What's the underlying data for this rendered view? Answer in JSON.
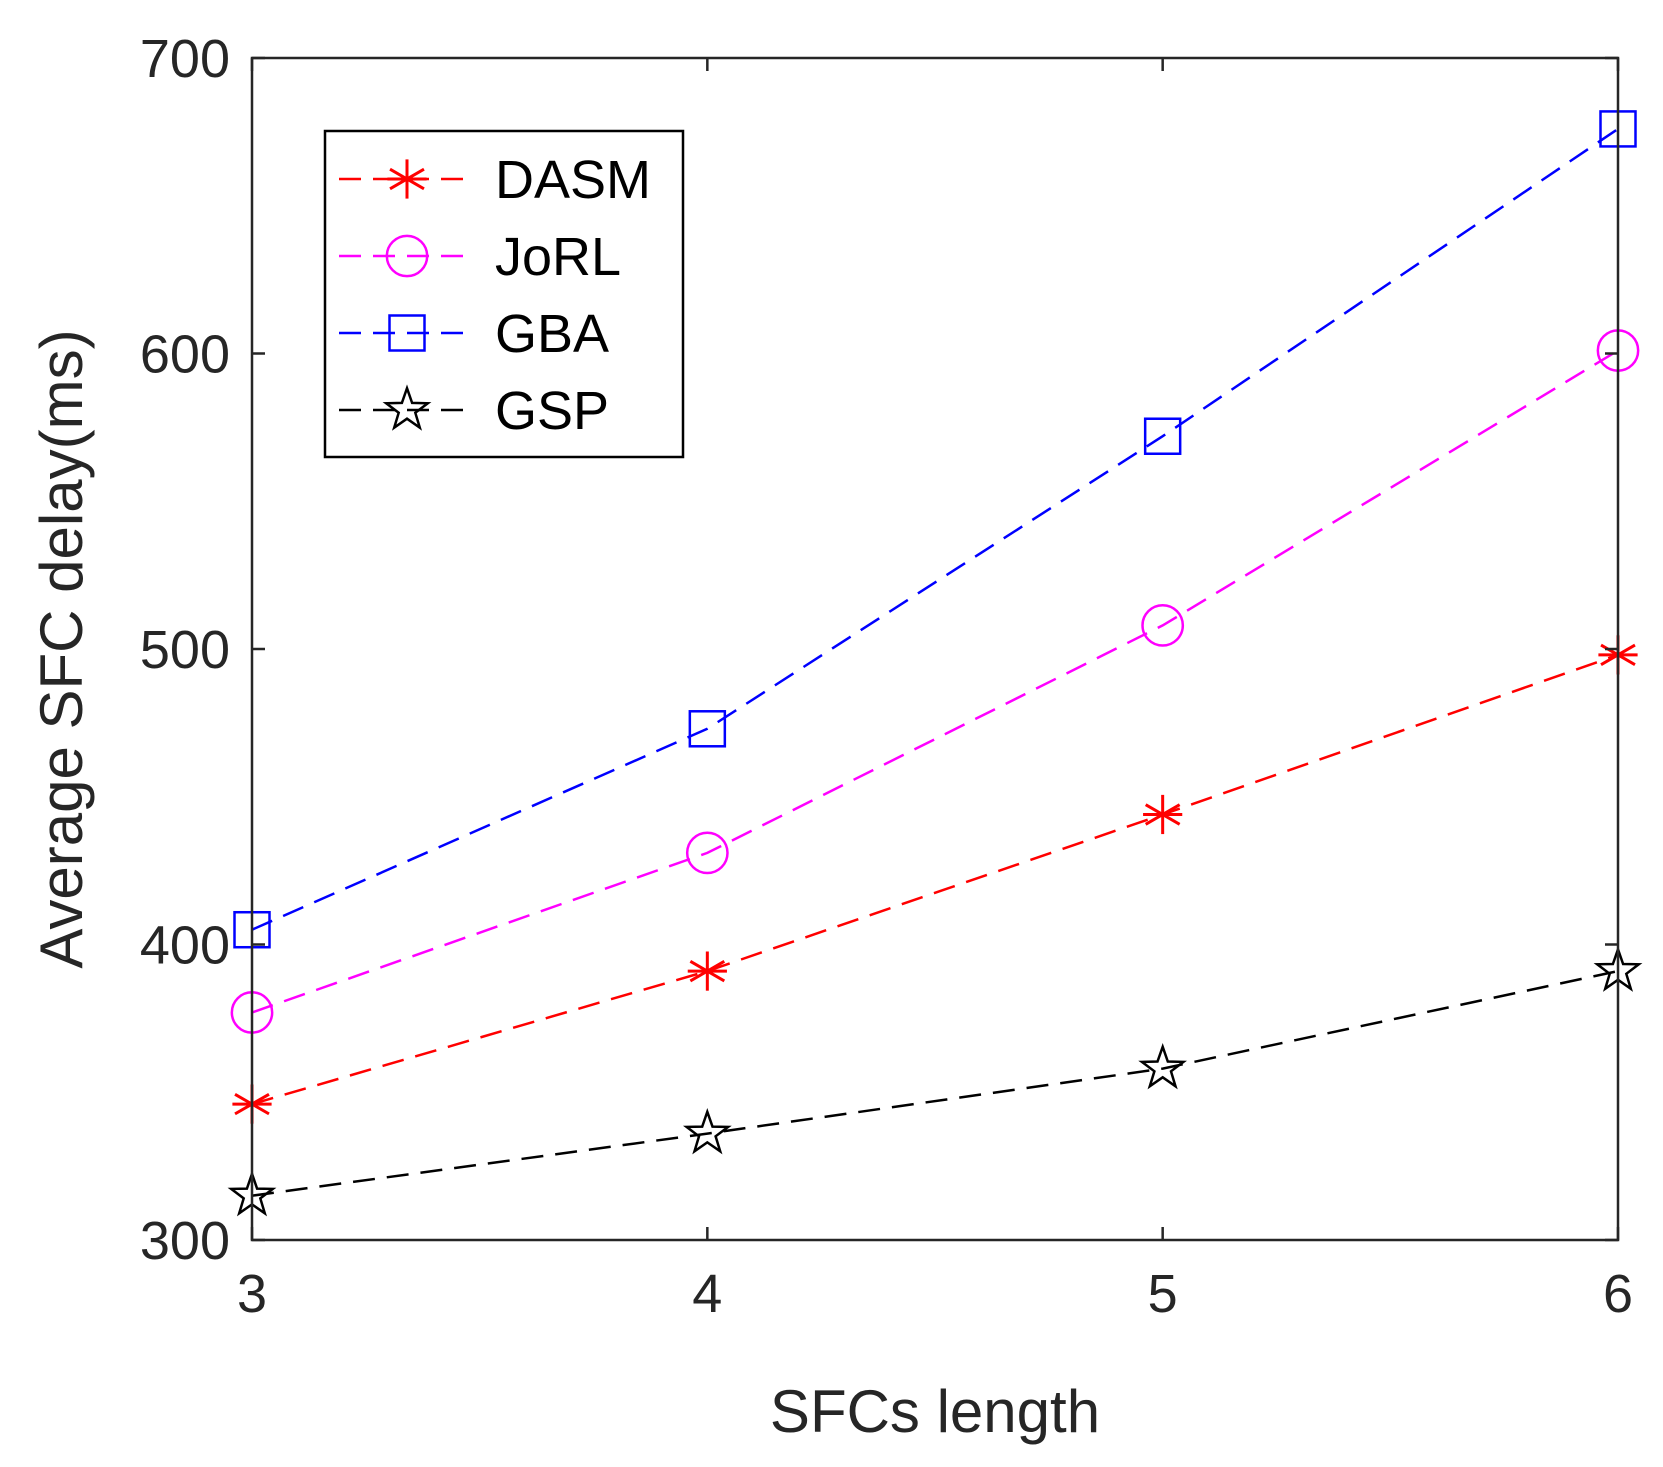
{
  "chart_data": {
    "type": "line",
    "title": "",
    "xlabel": "SFCs length",
    "ylabel": "Average SFC delay(ms)",
    "x": [
      3,
      4,
      5,
      6
    ],
    "xlim": [
      3,
      6
    ],
    "ylim": [
      300,
      700
    ],
    "xticks": [
      "3",
      "4",
      "5",
      "6"
    ],
    "yticks": [
      "300",
      "400",
      "500",
      "600",
      "700"
    ],
    "xtick_values": [
      3,
      4,
      5,
      6
    ],
    "ytick_values": [
      300,
      400,
      500,
      600,
      700
    ],
    "grid": false,
    "legend_position": "top-left",
    "series": [
      {
        "name": "DASM",
        "values": [
          346,
          391,
          444,
          498
        ],
        "color": "#ff0000",
        "marker": "asterisk",
        "line_style": "dashed"
      },
      {
        "name": "JoRL",
        "values": [
          377,
          431,
          508,
          601
        ],
        "color": "#ff00ff",
        "marker": "circle",
        "line_style": "dashed"
      },
      {
        "name": "GBA",
        "values": [
          405,
          473,
          572,
          676
        ],
        "color": "#0000ff",
        "marker": "square",
        "line_style": "dashed"
      },
      {
        "name": "GSP",
        "values": [
          315,
          336,
          358,
          391
        ],
        "color": "#000000",
        "marker": "star",
        "line_style": "dashed"
      }
    ]
  }
}
